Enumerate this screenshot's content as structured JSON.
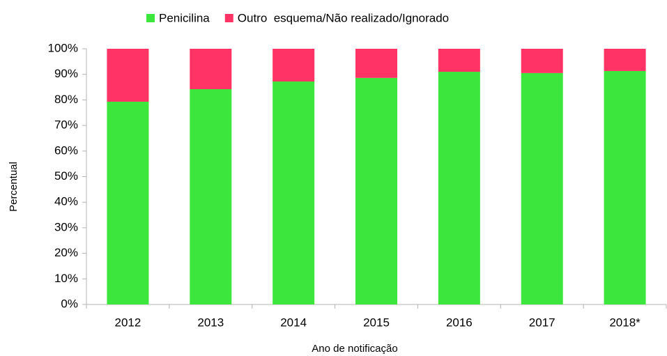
{
  "chart_data": {
    "type": "stacked_bar",
    "categories": [
      "2012",
      "2013",
      "2014",
      "2015",
      "2016",
      "2017",
      "2018*"
    ],
    "series": [
      {
        "name": "Penicilina",
        "color": "#3de63d",
        "values": [
          79.3,
          84.2,
          87.2,
          88.6,
          91.0,
          90.5,
          91.3
        ]
      },
      {
        "name": "Outro  esquema/Não realizado/Ignorado",
        "color": "#ff3366",
        "values": [
          20.7,
          15.8,
          12.8,
          11.4,
          9.0,
          9.5,
          8.7
        ]
      }
    ],
    "xlabel": "Ano de notificação",
    "ylabel": "Percentual",
    "ylim": [
      0,
      100
    ],
    "yticks": [
      {
        "value": 0,
        "label": "0%"
      },
      {
        "value": 10,
        "label": "10%"
      },
      {
        "value": 20,
        "label": "20%"
      },
      {
        "value": 30,
        "label": "30%"
      },
      {
        "value": 40,
        "label": "40%"
      },
      {
        "value": 50,
        "label": "50%"
      },
      {
        "value": 60,
        "label": "60%"
      },
      {
        "value": 70,
        "label": "70%"
      },
      {
        "value": 80,
        "label": "80%"
      },
      {
        "value": 90,
        "label": "90%"
      },
      {
        "value": 100,
        "label": "100%"
      }
    ],
    "legend": "top"
  }
}
